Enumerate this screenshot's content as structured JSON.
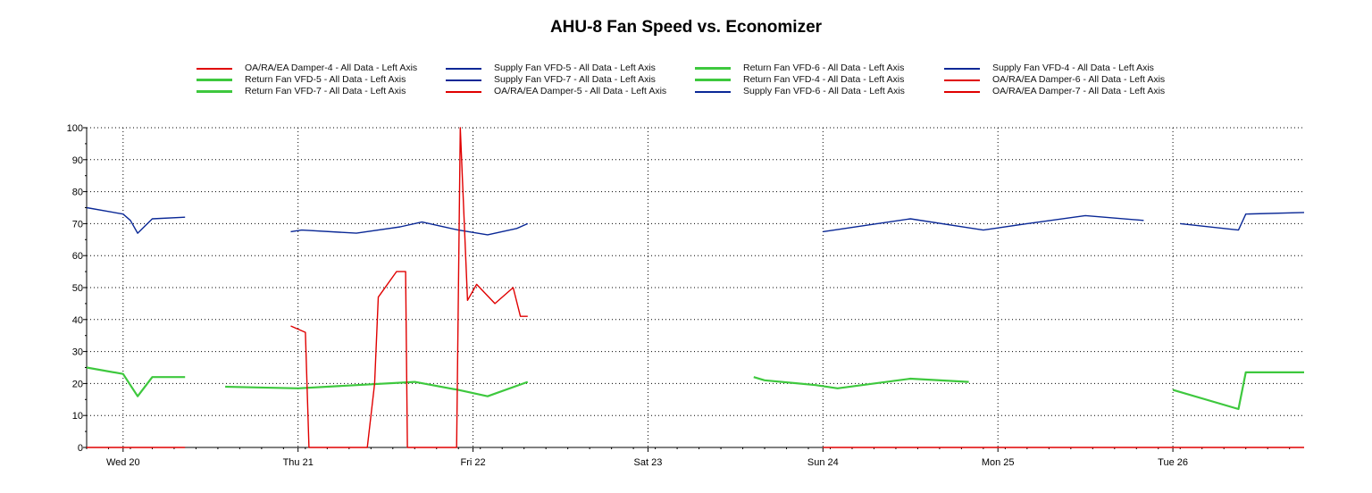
{
  "colors": {
    "red": "#e00000",
    "blue": "#0a2896",
    "green": "#3ec83e",
    "grid": "#000000",
    "background": "#ffffff"
  },
  "chart_data": {
    "type": "line",
    "title": "AHU-8 Fan Speed vs. Economizer",
    "xlabel": "",
    "ylabel": "",
    "ylim": [
      0,
      100
    ],
    "yticks": [
      "0",
      "10",
      "20",
      "30",
      "40",
      "50",
      "60",
      "70",
      "80",
      "90",
      "100"
    ],
    "xlim": [
      "2024-03-19T19:00",
      "2024-03-26T18:00"
    ],
    "xticks": [
      {
        "label": "Wed 20",
        "x": "2024-03-20T00:00"
      },
      {
        "label": "Thu 21",
        "x": "2024-03-21T00:00"
      },
      {
        "label": "Fri 22",
        "x": "2024-03-22T00:00"
      },
      {
        "label": "Sat 23",
        "x": "2024-03-23T00:00"
      },
      {
        "label": "Sun 24",
        "x": "2024-03-24T00:00"
      },
      {
        "label": "Mon 25",
        "x": "2024-03-25T00:00"
      },
      {
        "label": "Tue 26",
        "x": "2024-03-26T00:00"
      }
    ],
    "grid": true,
    "legend_position": "top",
    "series": [
      {
        "name": "OA/RA/EA Damper-4 - All Data -  Left Axis",
        "color": "red",
        "width": 1.4,
        "points": [
          [
            "2024-03-19T19:00",
            0
          ],
          [
            "2024-03-20T08:30",
            0
          ]
        ]
      },
      {
        "name": "Supply Fan VFD-5 - All Data -  Left Axis",
        "color": "blue",
        "width": 1.4,
        "points": [
          [
            "2024-03-20T23:00",
            67.5
          ],
          [
            "2024-03-21T00:30",
            68
          ],
          [
            "2024-03-21T08:00",
            67
          ],
          [
            "2024-03-21T14:00",
            69
          ],
          [
            "2024-03-21T17:00",
            70.5
          ],
          [
            "2024-03-21T22:00",
            68
          ],
          [
            "2024-03-22T02:00",
            66.5
          ],
          [
            "2024-03-22T06:00",
            68.5
          ],
          [
            "2024-03-22T07:30",
            70
          ]
        ]
      },
      {
        "name": "Return Fan VFD-6 - All Data -  Left Axis",
        "color": "green",
        "width": 2.2,
        "points": [
          [
            "2024-03-23T14:30",
            22
          ],
          [
            "2024-03-23T16:00",
            21
          ],
          [
            "2024-03-23T23:00",
            19.5
          ],
          [
            "2024-03-24T02:00",
            18.5
          ],
          [
            "2024-03-24T12:00",
            21.5
          ],
          [
            "2024-03-24T20:00",
            20.5
          ]
        ]
      },
      {
        "name": "Supply Fan VFD-4 - All Data -  Left Axis",
        "color": "blue",
        "width": 1.4,
        "points": [
          [
            "2024-03-19T19:00",
            75
          ],
          [
            "2024-03-20T00:00",
            73
          ],
          [
            "2024-03-20T01:00",
            71
          ],
          [
            "2024-03-20T02:00",
            67
          ],
          [
            "2024-03-20T04:00",
            71.5
          ],
          [
            "2024-03-20T08:30",
            72
          ]
        ]
      },
      {
        "name": "Return Fan VFD-5 - All Data -  Left Axis",
        "color": "green",
        "width": 2.2,
        "points": [
          [
            "2024-03-20T14:00",
            19
          ],
          [
            "2024-03-21T00:00",
            18.5
          ],
          [
            "2024-03-21T08:00",
            19.5
          ],
          [
            "2024-03-21T16:00",
            20.5
          ],
          [
            "2024-03-21T22:00",
            18
          ],
          [
            "2024-03-22T02:00",
            16
          ],
          [
            "2024-03-22T07:30",
            20.5
          ]
        ]
      },
      {
        "name": "Supply Fan VFD-7 - All Data -  Left Axis",
        "color": "blue",
        "width": 1.4,
        "points": [
          [
            "2024-03-26T01:00",
            70
          ],
          [
            "2024-03-26T09:00",
            68
          ],
          [
            "2024-03-26T10:00",
            73
          ],
          [
            "2024-03-26T18:00",
            73.5
          ]
        ]
      },
      {
        "name": "Return Fan VFD-4 - All Data -  Left Axis",
        "color": "green",
        "width": 2.2,
        "points": [
          [
            "2024-03-19T19:00",
            25
          ],
          [
            "2024-03-20T00:00",
            23
          ],
          [
            "2024-03-20T02:00",
            16
          ],
          [
            "2024-03-20T04:00",
            22
          ],
          [
            "2024-03-20T08:30",
            22
          ]
        ]
      },
      {
        "name": "OA/RA/EA Damper-6 - All Data -  Left Axis",
        "color": "red",
        "width": 1.4,
        "points": [
          [
            "2024-03-24T00:00",
            0
          ],
          [
            "2024-03-26T18:00",
            0
          ]
        ]
      },
      {
        "name": "Return Fan VFD-7 - All Data -  Left Axis",
        "color": "green",
        "width": 2.2,
        "points": [
          [
            "2024-03-26T00:00",
            18
          ],
          [
            "2024-03-26T09:00",
            12
          ],
          [
            "2024-03-26T10:00",
            23.5
          ],
          [
            "2024-03-26T18:00",
            23.5
          ]
        ]
      },
      {
        "name": "OA/RA/EA Damper-5 - All Data -  Left Axis",
        "color": "red",
        "width": 1.4,
        "points": [
          [
            "2024-03-20T23:00",
            38
          ],
          [
            "2024-03-21T01:00",
            36
          ],
          [
            "2024-03-21T01:30",
            0
          ],
          [
            "2024-03-21T09:30",
            0
          ],
          [
            "2024-03-21T10:30",
            20
          ],
          [
            "2024-03-21T11:00",
            47
          ],
          [
            "2024-03-21T13:30",
            55
          ],
          [
            "2024-03-21T14:45",
            55
          ],
          [
            "2024-03-21T15:00",
            0
          ],
          [
            "2024-03-21T21:45",
            0
          ],
          [
            "2024-03-21T22:15",
            100
          ],
          [
            "2024-03-21T23:15",
            46
          ],
          [
            "2024-03-22T00:30",
            51
          ],
          [
            "2024-03-22T03:00",
            45
          ],
          [
            "2024-03-22T05:30",
            50
          ],
          [
            "2024-03-22T06:30",
            41
          ],
          [
            "2024-03-22T07:30",
            41
          ]
        ]
      },
      {
        "name": "Supply Fan VFD-6 - All Data -  Left Axis",
        "color": "blue",
        "width": 1.4,
        "points": [
          [
            "2024-03-24T00:00",
            67.5
          ],
          [
            "2024-03-24T12:00",
            71.5
          ],
          [
            "2024-03-24T22:00",
            68
          ],
          [
            "2024-03-25T04:00",
            70
          ],
          [
            "2024-03-25T12:00",
            72.5
          ],
          [
            "2024-03-25T20:00",
            71
          ]
        ]
      },
      {
        "name": "OA/RA/EA Damper-7 - All Data -  Left Axis",
        "color": "red",
        "width": 1.4,
        "points": []
      }
    ]
  }
}
